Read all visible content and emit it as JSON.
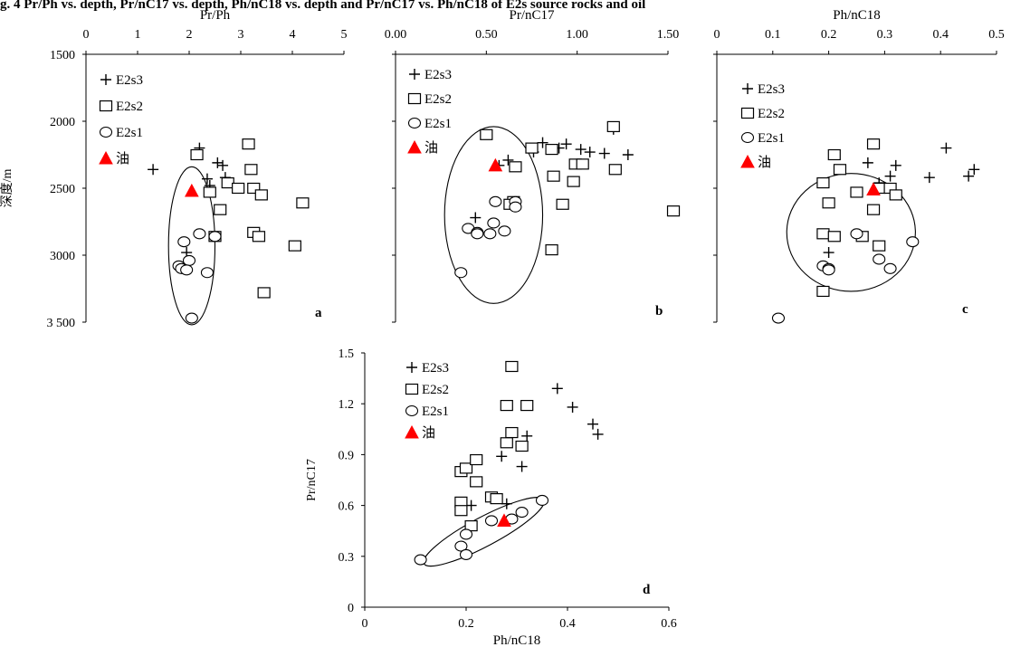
{
  "caption": "g. 4 Pr/Ph vs. depth, Pr/nC17 vs. depth, Ph/nC18 vs. depth and Pr/nC17 vs. Ph/nC18 of E2s source rocks and oil",
  "colors": {
    "marker": "#000000",
    "oil": "#ff0000"
  },
  "chart_data": [
    {
      "type": "scatter",
      "panel": "a",
      "xlabel": "Pr/Ph",
      "ylabel": "深度/m",
      "xlim": [
        0,
        5
      ],
      "ylim": [
        3500,
        1500
      ],
      "y_inverted": true,
      "x_axis_position": "top",
      "xticks": [
        "0",
        "1",
        "2",
        "3",
        "4",
        "5"
      ],
      "yticks": [
        "1500",
        "2000",
        "2500",
        "3000",
        "3 500"
      ],
      "legend": [
        "E2s3",
        "E2s2",
        "E2s1",
        "油"
      ],
      "series": [
        {
          "name": "E2s3",
          "marker": "plus",
          "x": [
            1.3,
            2.2,
            2.35,
            2.4,
            2.55,
            2.65,
            2.7,
            1.95
          ],
          "y": [
            2360,
            2200,
            2430,
            2480,
            2310,
            2330,
            2420,
            2980
          ]
        },
        {
          "name": "E2s2",
          "marker": "square",
          "x": [
            2.15,
            3.15,
            3.2,
            2.75,
            2.95,
            3.25,
            2.4,
            3.4,
            2.6,
            3.25,
            3.35,
            2.5,
            4.05,
            4.2,
            3.45
          ],
          "y": [
            2250,
            2170,
            2360,
            2460,
            2500,
            2500,
            2530,
            2550,
            2660,
            2830,
            2860,
            2860,
            2930,
            2610,
            3280
          ]
        },
        {
          "name": "E2s1",
          "marker": "circle",
          "x": [
            2.2,
            1.9,
            2.0,
            2.5,
            1.8,
            1.85,
            1.95,
            2.35,
            2.05
          ],
          "y": [
            2840,
            2900,
            3040,
            2860,
            3080,
            3100,
            3110,
            3130,
            3470
          ]
        },
        {
          "name": "油",
          "marker": "triangle",
          "x": [
            2.05
          ],
          "y": [
            2520
          ]
        }
      ],
      "ellipse": {
        "cx": 2.05,
        "cy": 2930,
        "rx": 0.45,
        "ry": 590
      },
      "label": "a"
    },
    {
      "type": "scatter",
      "panel": "b",
      "xlabel": "Pr/nC17",
      "xlim": [
        0,
        1.5
      ],
      "ylim": [
        3500,
        1500
      ],
      "y_inverted": true,
      "x_axis_position": "top",
      "xticks": [
        "0.00",
        "0.50",
        "1.00",
        "1.50"
      ],
      "legend": [
        "E2s3",
        "E2s2",
        "E2s1",
        "油"
      ],
      "series": [
        {
          "name": "E2s3",
          "marker": "plus",
          "x": [
            0.57,
            0.62,
            0.76,
            0.81,
            0.9,
            0.94,
            1.02,
            1.07,
            1.15,
            1.2,
            1.28,
            0.44
          ],
          "y": [
            2330,
            2290,
            2230,
            2160,
            2200,
            2170,
            2210,
            2230,
            2240,
            2060,
            2250,
            2720
          ]
        },
        {
          "name": "E2s2",
          "marker": "square",
          "x": [
            0.5,
            0.75,
            0.66,
            0.86,
            0.87,
            0.99,
            1.03,
            1.2,
            1.21,
            0.98,
            0.65,
            0.63,
            0.92,
            1.53,
            0.86
          ],
          "y": [
            2100,
            2200,
            2340,
            2210,
            2410,
            2320,
            2320,
            2040,
            2360,
            2450,
            2600,
            2620,
            2620,
            2670,
            2960
          ]
        },
        {
          "name": "E2s1",
          "marker": "circle",
          "x": [
            0.55,
            0.66,
            0.66,
            0.4,
            0.45,
            0.52,
            0.54,
            0.6,
            0.45,
            0.36
          ],
          "y": [
            2600,
            2600,
            2640,
            2800,
            2830,
            2840,
            2760,
            2820,
            2840,
            3130
          ]
        },
        {
          "name": "油",
          "marker": "triangle",
          "x": [
            0.55
          ],
          "y": [
            2330
          ]
        }
      ],
      "ellipse": {
        "cx": 0.54,
        "cy": 2700,
        "rx": 0.27,
        "ry": 660
      },
      "label": "b"
    },
    {
      "type": "scatter",
      "panel": "c",
      "xlabel": "Ph/nC18",
      "xlim": [
        0,
        0.5
      ],
      "ylim": [
        3500,
        1500
      ],
      "y_inverted": true,
      "x_axis_position": "top",
      "xticks": [
        "0",
        "0.1",
        "0.2",
        "0.3",
        "0.4",
        "0.5"
      ],
      "legend": [
        "E2s3",
        "E2s2",
        "E2s1",
        "油"
      ],
      "series": [
        {
          "name": "E2s3",
          "marker": "plus",
          "x": [
            0.41,
            0.46,
            0.45,
            0.38,
            0.32,
            0.31,
            0.27,
            0.29,
            0.2
          ],
          "y": [
            2200,
            2360,
            2410,
            2420,
            2330,
            2410,
            2310,
            2460,
            2980
          ]
        },
        {
          "name": "E2s2",
          "marker": "square",
          "x": [
            0.21,
            0.28,
            0.22,
            0.19,
            0.2,
            0.25,
            0.29,
            0.31,
            0.32,
            0.28,
            0.19,
            0.21,
            0.26,
            0.29,
            0.19
          ],
          "y": [
            2250,
            2170,
            2360,
            2460,
            2610,
            2530,
            2500,
            2500,
            2550,
            2660,
            2840,
            2860,
            2860,
            2930,
            3270
          ]
        },
        {
          "name": "E2s1",
          "marker": "circle",
          "x": [
            0.25,
            0.35,
            0.19,
            0.2,
            0.2,
            0.29,
            0.31,
            0.11
          ],
          "y": [
            2840,
            2900,
            3080,
            3100,
            3110,
            3030,
            3100,
            3470
          ]
        },
        {
          "name": "油",
          "marker": "triangle",
          "x": [
            0.28
          ],
          "y": [
            2510
          ]
        }
      ],
      "ellipse": {
        "cx": 0.24,
        "cy": 2830,
        "rx": 0.115,
        "ry": 440
      },
      "label": "c"
    },
    {
      "type": "scatter",
      "panel": "d",
      "xlabel": "Ph/nC18",
      "ylabel": "Pr/nC17",
      "xlim": [
        0,
        0.6
      ],
      "ylim": [
        0,
        1.5
      ],
      "xticks": [
        "0",
        "0.2",
        "0.4",
        "0.6"
      ],
      "yticks": [
        "0",
        "0.3",
        "0.6",
        "0.9",
        "1.2",
        "1.5"
      ],
      "legend": [
        "E2s3",
        "E2s2",
        "E2s1",
        "油"
      ],
      "series": [
        {
          "name": "E2s3",
          "marker": "plus",
          "x": [
            0.38,
            0.41,
            0.45,
            0.46,
            0.32,
            0.31,
            0.27,
            0.28,
            0.21
          ],
          "y": [
            1.29,
            1.18,
            1.08,
            1.02,
            1.01,
            0.83,
            0.89,
            0.61,
            0.6
          ]
        },
        {
          "name": "E2s2",
          "marker": "square",
          "x": [
            0.29,
            0.28,
            0.32,
            0.29,
            0.28,
            0.31,
            0.19,
            0.2,
            0.22,
            0.22,
            0.19,
            0.19,
            0.25,
            0.26,
            0.21
          ],
          "y": [
            1.42,
            1.19,
            1.19,
            1.03,
            0.97,
            0.95,
            0.8,
            0.82,
            0.87,
            0.74,
            0.62,
            0.57,
            0.65,
            0.64,
            0.48
          ]
        },
        {
          "name": "E2s1",
          "marker": "circle",
          "x": [
            0.35,
            0.31,
            0.29,
            0.25,
            0.2,
            0.19,
            0.2,
            0.11
          ],
          "y": [
            0.63,
            0.56,
            0.52,
            0.51,
            0.43,
            0.36,
            0.31,
            0.28
          ]
        },
        {
          "name": "油",
          "marker": "triangle",
          "x": [
            0.275
          ],
          "y": [
            0.51
          ]
        }
      ],
      "ellipse": {
        "cx": 0.235,
        "cy": 0.445,
        "rx": 0.155,
        "ry": 0.05,
        "rotate_deg": -28
      },
      "label": "d"
    }
  ]
}
